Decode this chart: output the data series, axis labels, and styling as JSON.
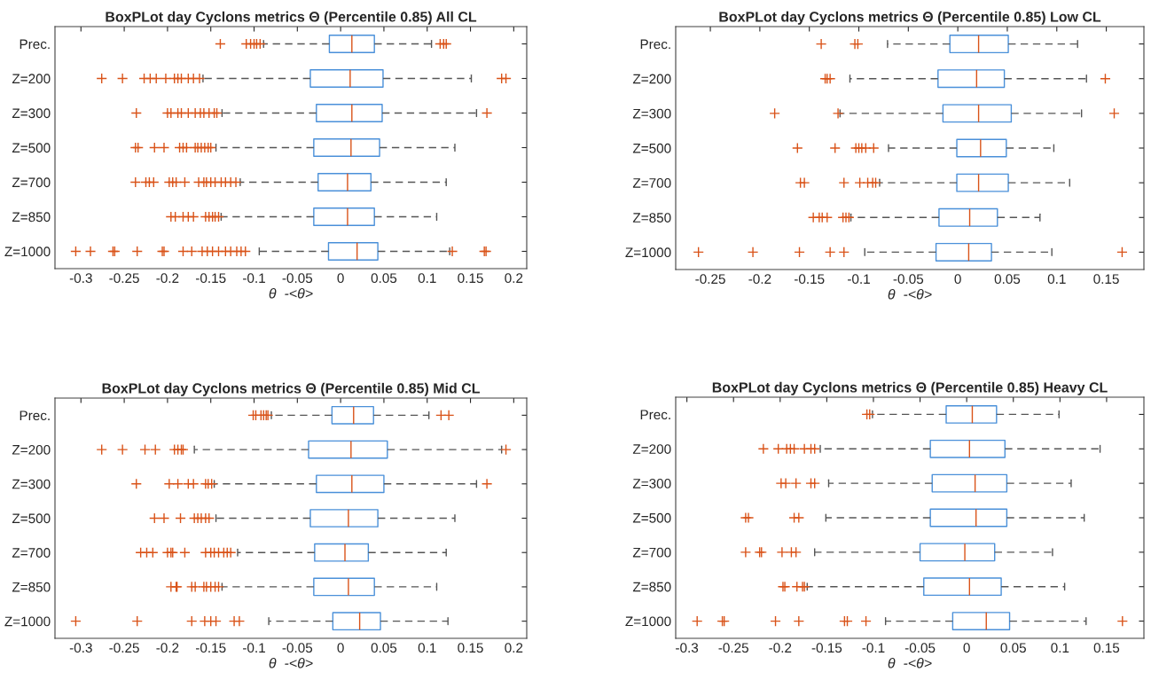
{
  "chart_data": [
    {
      "type": "box",
      "orientation": "horizontal",
      "title": "BoxPLot day Cyclons metrics Θ (Percentile 0.85) All CL",
      "xlabel": "θ  -<θ>",
      "categories": [
        "Prec.",
        "Z=200",
        "Z=300",
        "Z=500",
        "Z=700",
        "Z=850",
        "Z=1000"
      ],
      "xlim": [
        -0.33,
        0.215
      ],
      "xticks": [
        -0.3,
        -0.25,
        -0.2,
        -0.15,
        -0.1,
        -0.05,
        0,
        0.05,
        0.1,
        0.15,
        0.2
      ],
      "grid": false,
      "series": [
        {
          "color": "#4a90d9",
          "boxes": [
            {
              "low": -0.089,
              "q1": -0.013,
              "median": 0.013,
              "q3": 0.039,
              "high": 0.105,
              "outliers": [
                -0.139,
                -0.109,
                -0.104,
                -0.1,
                -0.097,
                -0.093,
                0.115,
                0.119,
                0.122
              ]
            },
            {
              "low": -0.159,
              "q1": -0.035,
              "median": 0.011,
              "q3": 0.049,
              "high": 0.151,
              "outliers": [
                -0.276,
                -0.252,
                -0.227,
                -0.22,
                -0.213,
                -0.202,
                -0.192,
                -0.188,
                -0.184,
                -0.176,
                -0.17,
                -0.163,
                0.186,
                0.191
              ]
            },
            {
              "low": -0.137,
              "q1": -0.028,
              "median": 0.013,
              "q3": 0.048,
              "high": 0.157,
              "outliers": [
                -0.236,
                -0.2,
                -0.196,
                -0.188,
                -0.184,
                -0.176,
                -0.168,
                -0.162,
                -0.158,
                -0.152,
                -0.146,
                -0.143,
                0.169
              ]
            },
            {
              "low": -0.144,
              "q1": -0.031,
              "median": 0.012,
              "q3": 0.045,
              "high": 0.132,
              "outliers": [
                -0.237,
                -0.234,
                -0.215,
                -0.204,
                -0.186,
                -0.182,
                -0.178,
                -0.168,
                -0.165,
                -0.161,
                -0.157,
                -0.153,
                -0.15
              ]
            },
            {
              "low": -0.116,
              "q1": -0.026,
              "median": 0.008,
              "q3": 0.035,
              "high": 0.122,
              "outliers": [
                -0.237,
                -0.225,
                -0.221,
                -0.216,
                -0.198,
                -0.194,
                -0.19,
                -0.18,
                -0.164,
                -0.158,
                -0.155,
                -0.15,
                -0.145,
                -0.138,
                -0.133,
                -0.127,
                -0.121
              ]
            },
            {
              "low": -0.138,
              "q1": -0.031,
              "median": 0.008,
              "q3": 0.039,
              "high": 0.111,
              "outliers": [
                -0.196,
                -0.191,
                -0.182,
                -0.176,
                -0.17,
                -0.156,
                -0.152,
                -0.148,
                -0.145,
                -0.141
              ]
            },
            {
              "low": -0.094,
              "q1": -0.014,
              "median": 0.019,
              "q3": 0.043,
              "high": 0.126,
              "outliers": [
                -0.306,
                -0.289,
                -0.263,
                -0.261,
                -0.235,
                -0.206,
                -0.204,
                -0.182,
                -0.172,
                -0.16,
                -0.154,
                -0.148,
                -0.141,
                -0.133,
                -0.127,
                -0.12,
                -0.115,
                -0.11,
                0.129,
                0.166,
                0.168
              ]
            }
          ]
        }
      ]
    },
    {
      "type": "box",
      "orientation": "horizontal",
      "title": "BoxPLot day Cyclons metrics Θ (Percentile 0.85) Low CL",
      "xlabel": "θ  -<θ>",
      "categories": [
        "Prec.",
        "Z=200",
        "Z=300",
        "Z=500",
        "Z=700",
        "Z=850",
        "Z=1000"
      ],
      "xlim": [
        -0.285,
        0.188
      ],
      "xticks": [
        -0.25,
        -0.2,
        -0.15,
        -0.1,
        -0.05,
        0,
        0.05,
        0.1,
        0.15
      ],
      "grid": false,
      "series": [
        {
          "color": "#4a90d9",
          "boxes": [
            {
              "low": -0.071,
              "q1": -0.008,
              "median": 0.021,
              "q3": 0.051,
              "high": 0.121,
              "outliers": [
                -0.138,
                -0.104,
                -0.101
              ]
            },
            {
              "low": -0.109,
              "q1": -0.02,
              "median": 0.019,
              "q3": 0.047,
              "high": 0.13,
              "outliers": [
                -0.134,
                -0.132,
                -0.129,
                0.149
              ]
            },
            {
              "low": -0.119,
              "q1": -0.015,
              "median": 0.021,
              "q3": 0.054,
              "high": 0.125,
              "outliers": [
                -0.185,
                -0.121,
                0.158
              ]
            },
            {
              "low": -0.07,
              "q1": -0.001,
              "median": 0.023,
              "q3": 0.049,
              "high": 0.097,
              "outliers": [
                -0.162,
                -0.124,
                -0.103,
                -0.1,
                -0.097,
                -0.093,
                -0.085
              ]
            },
            {
              "low": -0.079,
              "q1": -0.001,
              "median": 0.021,
              "q3": 0.051,
              "high": 0.113,
              "outliers": [
                -0.159,
                -0.155,
                -0.115,
                -0.099,
                -0.091,
                -0.086,
                -0.083
              ]
            },
            {
              "low": -0.108,
              "q1": -0.019,
              "median": 0.012,
              "q3": 0.04,
              "high": 0.083,
              "outliers": [
                -0.146,
                -0.14,
                -0.137,
                -0.132,
                -0.116,
                -0.113,
                -0.11
              ]
            },
            {
              "low": -0.094,
              "q1": -0.022,
              "median": 0.011,
              "q3": 0.034,
              "high": 0.095,
              "outliers": [
                -0.262,
                -0.207,
                -0.16,
                -0.129,
                -0.115,
                0.166
              ]
            }
          ]
        }
      ]
    },
    {
      "type": "box",
      "orientation": "horizontal",
      "title": "BoxPLot day Cyclons metrics Θ (Percentile 0.85) Mid CL",
      "xlabel": "θ  -<θ>",
      "categories": [
        "Prec.",
        "Z=200",
        "Z=300",
        "Z=500",
        "Z=700",
        "Z=850",
        "Z=1000"
      ],
      "xlim": [
        -0.33,
        0.215
      ],
      "xticks": [
        -0.3,
        -0.25,
        -0.2,
        -0.15,
        -0.1,
        -0.05,
        0,
        0.05,
        0.1,
        0.15,
        0.2
      ],
      "grid": false,
      "series": [
        {
          "color": "#4a90d9",
          "boxes": [
            {
              "low": -0.08,
              "q1": -0.01,
              "median": 0.015,
              "q3": 0.038,
              "high": 0.102,
              "outliers": [
                -0.101,
                -0.098,
                -0.092,
                -0.089,
                -0.086,
                -0.084,
                0.116,
                0.125
              ]
            },
            {
              "low": -0.169,
              "q1": -0.037,
              "median": 0.012,
              "q3": 0.054,
              "high": 0.186,
              "outliers": [
                -0.276,
                -0.252,
                -0.226,
                -0.214,
                -0.192,
                -0.188,
                -0.184,
                -0.182,
                0.191
              ]
            },
            {
              "low": -0.146,
              "q1": -0.028,
              "median": 0.013,
              "q3": 0.05,
              "high": 0.157,
              "outliers": [
                -0.236,
                -0.198,
                -0.188,
                -0.176,
                -0.17,
                -0.156,
                -0.153,
                -0.149,
                0.169
              ]
            },
            {
              "low": -0.144,
              "q1": -0.035,
              "median": 0.009,
              "q3": 0.043,
              "high": 0.132,
              "outliers": [
                -0.215,
                -0.204,
                -0.185,
                -0.169,
                -0.165,
                -0.161,
                -0.156,
                -0.152
              ]
            },
            {
              "low": -0.119,
              "q1": -0.03,
              "median": 0.005,
              "q3": 0.032,
              "high": 0.122,
              "outliers": [
                -0.231,
                -0.224,
                -0.217,
                -0.2,
                -0.196,
                -0.194,
                -0.18,
                -0.156,
                -0.15,
                -0.146,
                -0.141,
                -0.135,
                -0.131,
                -0.127
              ]
            },
            {
              "low": -0.137,
              "q1": -0.031,
              "median": 0.009,
              "q3": 0.039,
              "high": 0.111,
              "outliers": [
                -0.196,
                -0.19,
                -0.189,
                -0.172,
                -0.168,
                -0.158,
                -0.155,
                -0.15,
                -0.145,
                -0.141
              ]
            },
            {
              "low": -0.083,
              "q1": -0.009,
              "median": 0.022,
              "q3": 0.046,
              "high": 0.124,
              "outliers": [
                -0.306,
                -0.235,
                -0.172,
                -0.157,
                -0.15,
                -0.144,
                -0.123,
                -0.117
              ]
            }
          ]
        }
      ]
    },
    {
      "type": "box",
      "orientation": "horizontal",
      "title": "BoxPLot day Cyclons metrics Θ (Percentile 0.85) Heavy CL",
      "xlabel": "θ  -<θ>",
      "categories": [
        "Prec.",
        "Z=200",
        "Z=300",
        "Z=500",
        "Z=700",
        "Z=850",
        "Z=1000"
      ],
      "xlim": [
        -0.312,
        0.19
      ],
      "xticks": [
        -0.3,
        -0.25,
        -0.2,
        -0.15,
        -0.1,
        -0.05,
        0,
        0.05,
        0.1,
        0.15
      ],
      "grid": false,
      "series": [
        {
          "color": "#4a90d9",
          "boxes": [
            {
              "low": -0.101,
              "q1": -0.022,
              "median": 0.006,
              "q3": 0.032,
              "high": 0.099,
              "outliers": [
                -0.107,
                -0.104
              ]
            },
            {
              "low": -0.157,
              "q1": -0.039,
              "median": 0.003,
              "q3": 0.041,
              "high": 0.143,
              "outliers": [
                -0.218,
                -0.202,
                -0.193,
                -0.189,
                -0.185,
                -0.174,
                -0.167,
                -0.163
              ]
            },
            {
              "low": -0.148,
              "q1": -0.037,
              "median": 0.009,
              "q3": 0.043,
              "high": 0.112,
              "outliers": [
                -0.199,
                -0.194,
                -0.183,
                -0.167,
                -0.163
              ]
            },
            {
              "low": -0.151,
              "q1": -0.039,
              "median": 0.01,
              "q3": 0.043,
              "high": 0.126,
              "outliers": [
                -0.237,
                -0.234,
                -0.185,
                -0.18
              ]
            },
            {
              "low": -0.163,
              "q1": -0.05,
              "median": -0.002,
              "q3": 0.03,
              "high": 0.092,
              "outliers": [
                -0.237,
                -0.222,
                -0.22,
                -0.198,
                -0.188,
                -0.183
              ]
            },
            {
              "low": -0.171,
              "q1": -0.046,
              "median": 0.003,
              "q3": 0.037,
              "high": 0.105,
              "outliers": [
                -0.197,
                -0.195,
                -0.182,
                -0.176,
                -0.174
              ]
            },
            {
              "low": -0.087,
              "q1": -0.015,
              "median": 0.021,
              "q3": 0.046,
              "high": 0.128,
              "outliers": [
                -0.289,
                -0.262,
                -0.26,
                -0.205,
                -0.18,
                -0.131,
                -0.128,
                -0.108,
                0.167
              ]
            }
          ]
        }
      ]
    }
  ]
}
